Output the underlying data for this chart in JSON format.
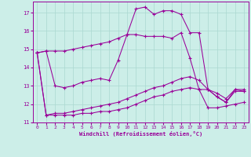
{
  "xlabel": "Windchill (Refroidissement éolien,°C)",
  "background_color": "#cceee8",
  "grid_color": "#aad8d0",
  "line_color": "#990099",
  "xlim": [
    -0.5,
    23.5
  ],
  "ylim": [
    11.0,
    17.6
  ],
  "yticks": [
    11,
    12,
    13,
    14,
    15,
    16,
    17
  ],
  "xticks": [
    0,
    1,
    2,
    3,
    4,
    5,
    6,
    7,
    8,
    9,
    10,
    11,
    12,
    13,
    14,
    15,
    16,
    17,
    18,
    19,
    20,
    21,
    22,
    23
  ],
  "series": [
    [
      14.8,
      14.9,
      14.9,
      14.9,
      15.0,
      15.1,
      15.2,
      15.3,
      15.4,
      15.6,
      15.8,
      17.2,
      17.3,
      16.9,
      17.1,
      17.1,
      16.9,
      15.9,
      15.9,
      12.8,
      12.4,
      12.1,
      12.8,
      12.7
    ],
    [
      14.8,
      14.9,
      13.0,
      12.9,
      13.0,
      13.2,
      13.3,
      13.4,
      13.3,
      14.4,
      15.8,
      15.8,
      15.7,
      15.7,
      15.7,
      15.6,
      15.9,
      14.5,
      12.8,
      12.8,
      12.4,
      12.1,
      12.7,
      12.7
    ],
    [
      14.8,
      11.4,
      11.5,
      11.5,
      11.6,
      11.7,
      11.8,
      11.9,
      12.0,
      12.1,
      12.3,
      12.5,
      12.7,
      12.9,
      13.0,
      13.2,
      13.4,
      13.5,
      13.3,
      12.8,
      12.6,
      12.3,
      12.8,
      12.8
    ],
    [
      14.8,
      11.4,
      11.4,
      11.4,
      11.4,
      11.5,
      11.5,
      11.6,
      11.6,
      11.7,
      11.8,
      12.0,
      12.2,
      12.4,
      12.5,
      12.7,
      12.8,
      12.9,
      12.8,
      11.8,
      11.8,
      11.9,
      12.0,
      12.1
    ]
  ],
  "figsize": [
    3.2,
    2.0
  ],
  "dpi": 100
}
